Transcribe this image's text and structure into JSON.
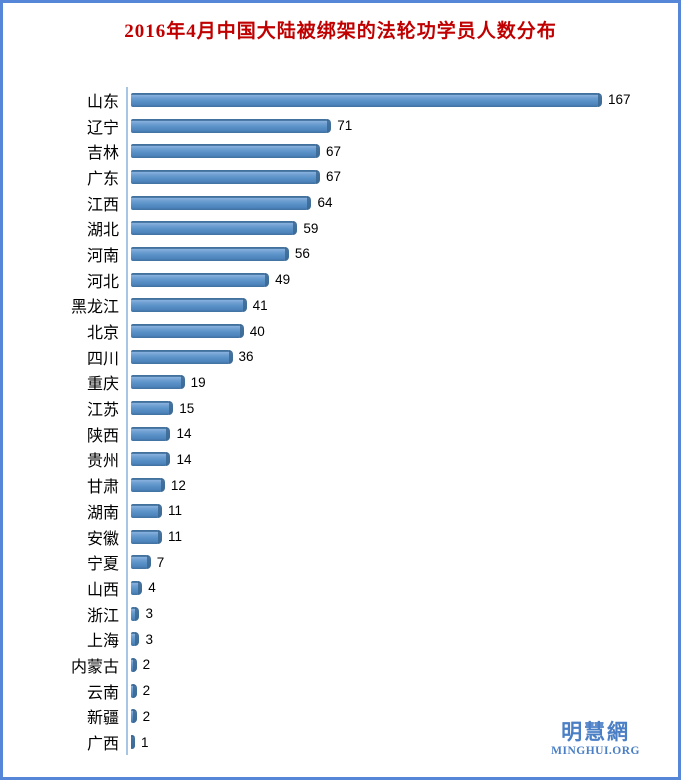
{
  "page": {
    "border_color": "#5586d8",
    "background_color": "#ffffff"
  },
  "title": {
    "text": "2016年4月中国大陆被绑架的法轮功学员人数分布",
    "color": "#c00000"
  },
  "chart_data": {
    "type": "bar",
    "orientation": "horizontal",
    "title": "2016年4月中国大陆被绑架的法轮功学员人数分布",
    "categories": [
      "山东",
      "辽宁",
      "吉林",
      "广东",
      "江西",
      "湖北",
      "河南",
      "河北",
      "黑龙江",
      "北京",
      "四川",
      "重庆",
      "江苏",
      "陕西",
      "贵州",
      "甘肃",
      "湖南",
      "安徽",
      "宁夏",
      "山西",
      "浙江",
      "上海",
      "内蒙古",
      "云南",
      "新疆",
      "广西"
    ],
    "values": [
      167,
      71,
      67,
      67,
      64,
      59,
      56,
      49,
      41,
      40,
      36,
      19,
      15,
      14,
      14,
      12,
      11,
      11,
      7,
      4,
      3,
      3,
      2,
      2,
      2,
      1
    ],
    "xlim": [
      0,
      178
    ],
    "grid": false,
    "legend": false,
    "data_labels": true,
    "bar_color": "#5b93c8",
    "bar_edge_dark": "#41719c",
    "bar_highlight": "#87b0dd",
    "bar_cap_color": "#38658f",
    "axis_line_color": "#a6c6e4",
    "label_color": "#000000",
    "value_label_color": "#000000"
  },
  "logo": {
    "chinese": "明慧網",
    "latin": "MINGHUI.ORG",
    "color": "#4b7fc5"
  }
}
